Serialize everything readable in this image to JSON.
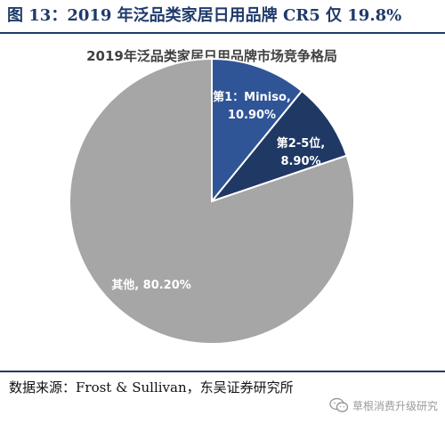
{
  "header": {
    "figure_title": "图 13：2019 年泛品类家居日用品牌 CR5 仅 19.8%"
  },
  "chart_data": {
    "type": "pie",
    "title": "2019年泛品类家居日用品牌市场竞争格局",
    "slices": [
      {
        "label_line1": "第1：Miniso,",
        "label_line2": "10.90%",
        "value": 10.9,
        "color": "#2f5597"
      },
      {
        "label_line1": "第2-5位,",
        "label_line2": "8.90%",
        "value": 8.9,
        "color": "#1f3864"
      },
      {
        "label_line1": "其他, 80.20%",
        "label_line2": "",
        "value": 80.2,
        "color": "#a6a6a6"
      }
    ],
    "start_angle_deg": 0,
    "direction": "clockwise",
    "slice_border_color": "#ffffff"
  },
  "footer": {
    "source": "数据来源：Frost & Sullivan，东吴证券研究所",
    "watermark": "草根消费升级研究",
    "watermark_icon": "wechat-icon"
  },
  "colors": {
    "accent": "#1f3a6b"
  }
}
